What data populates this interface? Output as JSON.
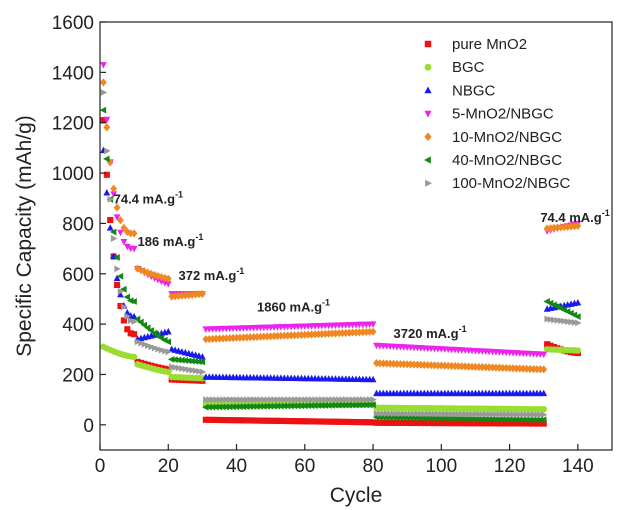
{
  "chart_data": {
    "type": "scatter",
    "xlabel": "Cycle",
    "ylabel": "Specific Capacity (mAh/g)",
    "xlim": [
      0,
      150
    ],
    "ylim": [
      -100,
      1600
    ],
    "xticks": [
      0,
      20,
      40,
      60,
      80,
      100,
      120,
      140
    ],
    "yticks": [
      0,
      200,
      400,
      600,
      800,
      1000,
      1200,
      1400,
      1600
    ],
    "grid": false,
    "legend_position": "top-right",
    "annotations": [
      {
        "text": "74.4 mA.g",
        "sup": "-1",
        "x": 4,
        "y": 880
      },
      {
        "text": "186 mA.g",
        "sup": "-1",
        "x": 11,
        "y": 710
      },
      {
        "text": "372 mA.g",
        "sup": "-1",
        "x": 23,
        "y": 575
      },
      {
        "text": "1860 mA.g",
        "sup": "-1",
        "x": 46,
        "y": 450
      },
      {
        "text": "3720 mA.g",
        "sup": "-1",
        "x": 86,
        "y": 345
      },
      {
        "text": "74.4 mA.g",
        "sup": "-1",
        "x": 129,
        "y": 805
      }
    ],
    "series": [
      {
        "name": "pure MnO2",
        "marker": "square",
        "color": "#ee1111",
        "segments": [
          {
            "x": [
              1,
              10
            ],
            "y": [
              1210,
              360
            ],
            "curve": 2.5
          },
          {
            "x": [
              11,
              20
            ],
            "y": [
              250,
              220
            ],
            "curve": 1.2
          },
          {
            "x": [
              21,
              30
            ],
            "y": [
              180,
              175
            ],
            "curve": 1
          },
          {
            "x": [
              31,
              80
            ],
            "y": [
              20,
              10
            ],
            "curve": 1
          },
          {
            "x": [
              81,
              130
            ],
            "y": [
              8,
              5
            ],
            "curve": 1
          },
          {
            "x": [
              131,
              140
            ],
            "y": [
              320,
              285
            ],
            "curve": 1.5
          }
        ]
      },
      {
        "name": "BGC",
        "marker": "circle",
        "color": "#99dd33",
        "segments": [
          {
            "x": [
              1,
              10
            ],
            "y": [
              310,
              270
            ],
            "curve": 1.5
          },
          {
            "x": [
              11,
              20
            ],
            "y": [
              240,
              210
            ],
            "curve": 1.2
          },
          {
            "x": [
              21,
              30
            ],
            "y": [
              190,
              185
            ],
            "curve": 1
          },
          {
            "x": [
              31,
              80
            ],
            "y": [
              80,
              80
            ],
            "curve": 1
          },
          {
            "x": [
              81,
              130
            ],
            "y": [
              68,
              62
            ],
            "curve": 1
          },
          {
            "x": [
              131,
              140
            ],
            "y": [
              300,
              295
            ],
            "curve": 1
          }
        ]
      },
      {
        "name": "NBGC",
        "marker": "triangle-up",
        "color": "#1a1aee",
        "segments": [
          {
            "x": [
              1,
              10
            ],
            "y": [
              1090,
              430
            ],
            "curve": 2.5
          },
          {
            "x": [
              11,
              20
            ],
            "y": [
              340,
              370
            ],
            "curve": 1
          },
          {
            "x": [
              21,
              30
            ],
            "y": [
              300,
              270
            ],
            "curve": 1
          },
          {
            "x": [
              31,
              80
            ],
            "y": [
              190,
              180
            ],
            "curve": 1
          },
          {
            "x": [
              81,
              130
            ],
            "y": [
              125,
              125
            ],
            "curve": 1
          },
          {
            "x": [
              131,
              140
            ],
            "y": [
              460,
              485
            ],
            "curve": 1
          }
        ]
      },
      {
        "name": "5-MnO2/NBGC",
        "marker": "triangle-down",
        "color": "#ee22ee",
        "segments": [
          {
            "x": [
              1,
              10
            ],
            "y": [
              1430,
              700
            ],
            "curve": 3
          },
          {
            "x": [
              11,
              20
            ],
            "y": [
              620,
              560
            ],
            "curve": 1.2
          },
          {
            "x": [
              21,
              30
            ],
            "y": [
              520,
              520
            ],
            "curve": 1
          },
          {
            "x": [
              31,
              80
            ],
            "y": [
              380,
              400
            ],
            "curve": 1
          },
          {
            "x": [
              81,
              130
            ],
            "y": [
              315,
              280
            ],
            "curve": 1
          },
          {
            "x": [
              131,
              140
            ],
            "y": [
              770,
              800
            ],
            "curve": 1
          }
        ]
      },
      {
        "name": "10-MnO2/NBGC",
        "marker": "diamond",
        "color": "#ee8822",
        "segments": [
          {
            "x": [
              1,
              10
            ],
            "y": [
              1360,
              760
            ],
            "curve": 3
          },
          {
            "x": [
              11,
              20
            ],
            "y": [
              620,
              580
            ],
            "curve": 1.2
          },
          {
            "x": [
              21,
              30
            ],
            "y": [
              510,
              520
            ],
            "curve": 1
          },
          {
            "x": [
              31,
              80
            ],
            "y": [
              340,
              370
            ],
            "curve": 1
          },
          {
            "x": [
              81,
              130
            ],
            "y": [
              245,
              220
            ],
            "curve": 1
          },
          {
            "x": [
              131,
              140
            ],
            "y": [
              780,
              790
            ],
            "curve": 1
          }
        ]
      },
      {
        "name": "40-MnO2/NBGC",
        "marker": "triangle-left",
        "color": "#118811",
        "segments": [
          {
            "x": [
              1,
              10
            ],
            "y": [
              1250,
              490
            ],
            "curve": 2.5
          },
          {
            "x": [
              11,
              20
            ],
            "y": [
              420,
              330
            ],
            "curve": 1.2
          },
          {
            "x": [
              21,
              30
            ],
            "y": [
              260,
              250
            ],
            "curve": 1
          },
          {
            "x": [
              31,
              80
            ],
            "y": [
              70,
              80
            ],
            "curve": 1
          },
          {
            "x": [
              81,
              130
            ],
            "y": [
              30,
              20
            ],
            "curve": 1
          },
          {
            "x": [
              131,
              140
            ],
            "y": [
              490,
              430
            ],
            "curve": 1
          }
        ]
      },
      {
        "name": "100-MnO2/NBGC",
        "marker": "triangle-right",
        "color": "#999999",
        "segments": [
          {
            "x": [
              1,
              10
            ],
            "y": [
              1320,
              410
            ],
            "curve": 2.5
          },
          {
            "x": [
              11,
              20
            ],
            "y": [
              330,
              290
            ],
            "curve": 1.2
          },
          {
            "x": [
              21,
              30
            ],
            "y": [
              230,
              210
            ],
            "curve": 1
          },
          {
            "x": [
              31,
              80
            ],
            "y": [
              100,
              100
            ],
            "curve": 1
          },
          {
            "x": [
              81,
              130
            ],
            "y": [
              45,
              40
            ],
            "curve": 1
          },
          {
            "x": [
              131,
              140
            ],
            "y": [
              420,
              405
            ],
            "curve": 1
          }
        ]
      }
    ]
  }
}
